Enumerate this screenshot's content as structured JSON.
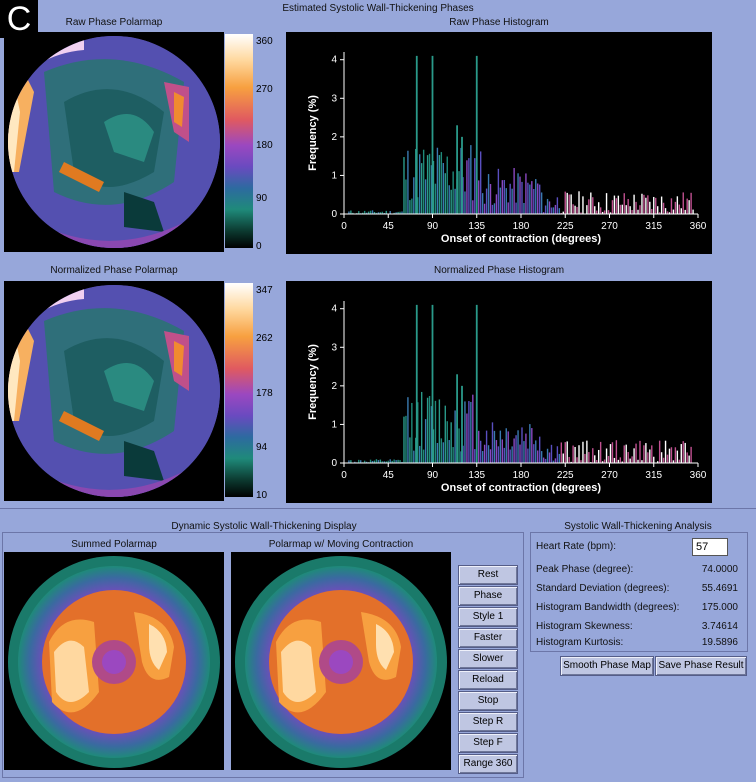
{
  "panel_letter": "C",
  "top_title": "Estimated Systolic Wall-Thickening Phases",
  "raw": {
    "polarmap_title": "Raw Phase Polarmap",
    "colorbar_labels": [
      "360",
      "270",
      "180",
      "90",
      "0"
    ],
    "hist_title": "Raw Phase Histogram"
  },
  "norm": {
    "polarmap_title": "Normalized Phase Polarmap",
    "colorbar_labels": [
      "347",
      "262",
      "178",
      "94",
      "10"
    ],
    "hist_title": "Normalized Phase Histogram"
  },
  "hist_axes": {
    "ylabel": "Frequency (%)",
    "xlabel": "Onset of contraction (degrees)",
    "xticks": [
      "0",
      "45",
      "90",
      "135",
      "180",
      "225",
      "270",
      "315",
      "360"
    ],
    "yticks": [
      "0",
      "1",
      "2",
      "3",
      "4"
    ]
  },
  "dynamic": {
    "title": "Dynamic Systolic Wall-Thickening Display",
    "summed_title": "Summed Polarmap",
    "moving_title": "Polarmap w/ Moving Contraction",
    "buttons": [
      "Rest",
      "Phase",
      "Style 1",
      "Faster",
      "Slower",
      "Reload",
      "Stop",
      "Step R",
      "Step F",
      "Range 360"
    ]
  },
  "analysis": {
    "title": "Systolic Wall-Thickening Analysis",
    "heart_rate_label": "Heart Rate (bpm):",
    "heart_rate_value": "57",
    "rows": [
      {
        "label": "Peak Phase (degree):",
        "value": "74.0000"
      },
      {
        "label": "Standard Deviation (degrees):",
        "value": "55.4691"
      },
      {
        "label": "Histogram Bandwidth (degrees):",
        "value": "175.000"
      },
      {
        "label": "Histogram Skewness:",
        "value": "3.74614"
      },
      {
        "label": "Histogram Kurtosis:",
        "value": "19.5896"
      }
    ],
    "smooth_button": "Smooth Phase Map",
    "save_button": "Save Phase Result"
  },
  "colors": {
    "background": "#97A7DA",
    "button": "#BFC6E2"
  }
}
